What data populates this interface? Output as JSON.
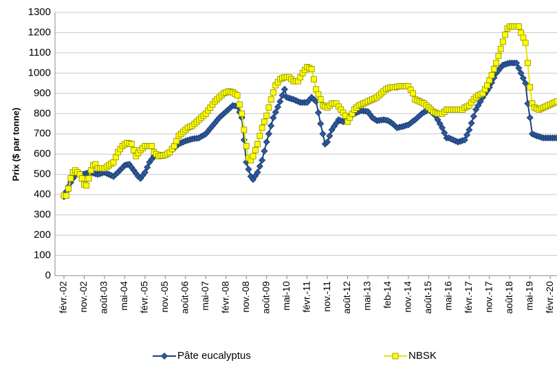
{
  "chart_data": {
    "type": "line",
    "y_label": "Prix ($ par tonne)",
    "ylim": [
      0,
      1300
    ],
    "yticks": [
      0,
      100,
      200,
      300,
      400,
      500,
      600,
      700,
      800,
      900,
      1000,
      1100,
      1200,
      1300
    ],
    "grid": true,
    "legend": "bottom",
    "categories": [
      "févr.-02",
      null,
      null,
      null,
      null,
      null,
      null,
      null,
      null,
      "nov.-02",
      null,
      null,
      null,
      null,
      null,
      null,
      null,
      null,
      "août-03",
      null,
      null,
      null,
      null,
      null,
      null,
      null,
      null,
      "mai-04",
      null,
      null,
      null,
      null,
      null,
      null,
      null,
      null,
      "févr.-05",
      null,
      null,
      null,
      null,
      null,
      null,
      null,
      null,
      "nov.-05",
      null,
      null,
      null,
      null,
      null,
      null,
      null,
      null,
      "août-06",
      null,
      null,
      null,
      null,
      null,
      null,
      null,
      null,
      "mai-07",
      null,
      null,
      null,
      null,
      null,
      null,
      null,
      null,
      "févr.-08",
      null,
      null,
      null,
      null,
      null,
      null,
      null,
      null,
      "nov.-08",
      null,
      null,
      null,
      null,
      null,
      null,
      null,
      null,
      "août-09",
      null,
      null,
      null,
      null,
      null,
      null,
      null,
      null,
      "mai-10",
      null,
      null,
      null,
      null,
      null,
      null,
      null,
      null,
      "févr.-11",
      null,
      null,
      null,
      null,
      null,
      null,
      null,
      null,
      "nov.-11",
      null,
      null,
      null,
      null,
      null,
      null,
      null,
      null,
      "août-12",
      null,
      null,
      null,
      null,
      null,
      null,
      null,
      null,
      "mai-13",
      null,
      null,
      null,
      null,
      null,
      null,
      null,
      null,
      "feb-14",
      null,
      null,
      null,
      null,
      null,
      null,
      null,
      null,
      "nov.-14",
      null,
      null,
      null,
      null,
      null,
      null,
      null,
      null,
      "août-15",
      null,
      null,
      null,
      null,
      null,
      null,
      null,
      null,
      "mai-16",
      null,
      null,
      null,
      null,
      null,
      null,
      null,
      null,
      "févr.-17",
      null,
      null,
      null,
      null,
      null,
      null,
      null,
      null,
      "nov.-17",
      null,
      null,
      null,
      null,
      null,
      null,
      null,
      null,
      "août-18",
      null,
      null,
      null,
      null,
      null,
      null,
      null,
      null,
      "mai-19",
      null,
      null,
      null,
      null,
      null,
      null,
      null,
      null,
      "févr.-20",
      null,
      null,
      null
    ],
    "series": [
      {
        "name": "Pâte eucalyptus",
        "color": "#2b5aa0",
        "marker": "diamond",
        "values": [
          390,
          415,
          440,
          460,
          480,
          495,
          510,
          505,
          500,
          502,
          505,
          508,
          510,
          507,
          503,
          500,
          503,
          507,
          510,
          505,
          500,
          495,
          490,
          500,
          510,
          522,
          533,
          545,
          548,
          550,
          535,
          520,
          505,
          490,
          480,
          495,
          510,
          535,
          560,
          575,
          590,
          593,
          595,
          595,
          595,
          595,
          603,
          612,
          620,
          630,
          640,
          650,
          655,
          660,
          665,
          668,
          672,
          675,
          677,
          678,
          680,
          687,
          693,
          700,
          713,
          727,
          740,
          753,
          767,
          780,
          790,
          800,
          810,
          820,
          830,
          840,
          838,
          835,
          808,
          780,
          670,
          560,
          525,
          490,
          475,
          493,
          510,
          540,
          570,
          615,
          660,
          700,
          740,
          780,
          807,
          833,
          860,
          890,
          920,
          880,
          877,
          873,
          870,
          865,
          860,
          855,
          855,
          855,
          855,
          868,
          880,
          870,
          860,
          805,
          750,
          700,
          650,
          660,
          690,
          720,
          737,
          753,
          770,
          765,
          760,
          770,
          780,
          787,
          793,
          800,
          805,
          810,
          815,
          813,
          812,
          810,
          795,
          780,
          773,
          765,
          767,
          768,
          770,
          768,
          765,
          758,
          750,
          740,
          730,
          733,
          735,
          738,
          742,
          745,
          753,
          762,
          770,
          780,
          790,
          800,
          807,
          813,
          820,
          810,
          800,
          790,
          770,
          750,
          730,
          705,
          680,
          680,
          675,
          670,
          665,
          660,
          663,
          667,
          670,
          695,
          720,
          753,
          787,
          820,
          840,
          860,
          880,
          897,
          913,
          930,
          953,
          977,
          1000,
          1013,
          1027,
          1040,
          1043,
          1047,
          1050,
          1050,
          1050,
          1050,
          1025,
          1000,
          975,
          950,
          850,
          780,
          700,
          695,
          690,
          687,
          683,
          680,
          680,
          680,
          680,
          680,
          680,
          680
        ]
      },
      {
        "name": "NBSK",
        "color": "#ffff00",
        "marker": "square",
        "values": [
          395,
          395,
          430,
          480,
          510,
          520,
          510,
          500,
          480,
          450,
          445,
          480,
          520,
          545,
          550,
          530,
          530,
          530,
          530,
          537,
          545,
          553,
          560,
          585,
          610,
          625,
          640,
          648,
          655,
          653,
          650,
          620,
          590,
          605,
          620,
          630,
          640,
          640,
          640,
          640,
          610,
          600,
          590,
          592,
          593,
          595,
          603,
          610,
          625,
          640,
          665,
          690,
          700,
          710,
          720,
          730,
          735,
          740,
          750,
          760,
          770,
          780,
          790,
          800,
          815,
          830,
          845,
          860,
          870,
          880,
          890,
          900,
          905,
          910,
          908,
          905,
          898,
          890,
          845,
          800,
          720,
          640,
          580,
          570,
          590,
          620,
          650,
          690,
          730,
          760,
          790,
          830,
          870,
          905,
          940,
          955,
          970,
          975,
          980,
          980,
          980,
          970,
          960,
          960,
          960,
          980,
          1000,
          1015,
          1030,
          1025,
          1020,
          970,
          920,
          895,
          870,
          840,
          835,
          830,
          840,
          850,
          850,
          850,
          835,
          820,
          805,
          790,
          760,
          780,
          800,
          820,
          830,
          840,
          845,
          850,
          855,
          860,
          865,
          870,
          875,
          880,
          890,
          900,
          910,
          920,
          925,
          930,
          930,
          930,
          933,
          935,
          935,
          935,
          935,
          935,
          918,
          900,
          870,
          865,
          860,
          855,
          850,
          840,
          830,
          820,
          810,
          805,
          800,
          800,
          800,
          810,
          820,
          820,
          820,
          820,
          820,
          820,
          820,
          820,
          830,
          835,
          840,
          855,
          870,
          880,
          890,
          895,
          900,
          920,
          940,
          965,
          990,
          1020,
          1050,
          1085,
          1120,
          1155,
          1190,
          1220,
          1230,
          1230,
          1230,
          1230,
          1230,
          1200,
          1175,
          1150,
          1050,
          930,
          850,
          830,
          825,
          820,
          825,
          830,
          835,
          840,
          845,
          850,
          855,
          860
        ]
      }
    ]
  }
}
